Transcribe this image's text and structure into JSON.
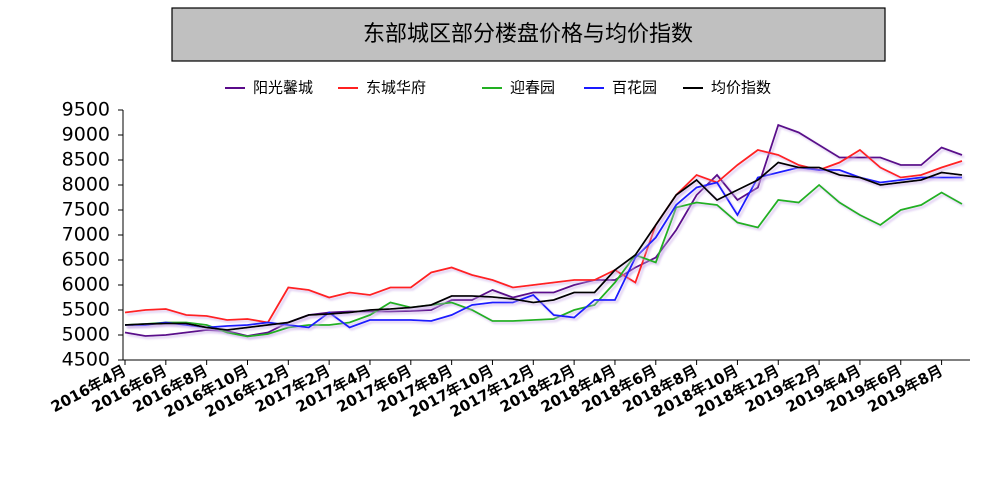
{
  "chart_data": {
    "type": "line",
    "title": "东部城区部分楼盘价格与均价指数",
    "categories": [
      "2016年4月",
      null,
      "2016年6月",
      null,
      "2016年8月",
      null,
      "2016年10月",
      null,
      "2016年12月",
      null,
      "2017年2月",
      null,
      "2017年4月",
      null,
      "2017年6月",
      null,
      "2017年8月",
      null,
      "2017年10月",
      null,
      "2017年12月",
      null,
      "2018年2月",
      null,
      "2018年4月",
      null,
      "2018年6月",
      null,
      "2018年8月",
      null,
      "2018年10月",
      null,
      "2018年12月",
      null,
      "2019年2月",
      null,
      "2019年4月",
      null,
      "2019年6月",
      null,
      "2019年8月",
      null
    ],
    "series": [
      {
        "name": "阳光馨城",
        "color": "#5a0a8a",
        "values": [
          5050,
          4980,
          5000,
          5050,
          5100,
          5080,
          4980,
          5050,
          5250,
          5400,
          5450,
          5470,
          5470,
          5470,
          5480,
          5500,
          5700,
          5700,
          5900,
          5750,
          5850,
          5850,
          6000,
          6100,
          6100,
          6350,
          6550,
          7100,
          7800,
          8200,
          7700,
          7950,
          9200,
          9050,
          8800,
          8550,
          8550,
          8550,
          8400,
          8400,
          8750,
          8600
        ]
      },
      {
        "name": "东城华府",
        "color": "#ff2020",
        "values": [
          5450,
          5500,
          5520,
          5400,
          5380,
          5300,
          5320,
          5250,
          5950,
          5900,
          5750,
          5850,
          5800,
          5950,
          5950,
          6250,
          6350,
          6200,
          6100,
          5950,
          6000,
          6050,
          6100,
          6100,
          6300,
          6050,
          7200,
          7800,
          8200,
          8050,
          8400,
          8700,
          8600,
          8400,
          8300,
          8450,
          8700,
          8350,
          8150,
          8200,
          8350,
          8480
        ]
      },
      {
        "name": "迎春园",
        "color": "#22b022",
        "values": [
          5200,
          5220,
          5250,
          5250,
          5200,
          5050,
          4970,
          5020,
          5150,
          5200,
          5200,
          5250,
          5400,
          5650,
          5550,
          5600,
          5650,
          5500,
          5280,
          5280,
          5300,
          5320,
          5500,
          5600,
          6050,
          6600,
          6450,
          7550,
          7650,
          7600,
          7250,
          7150,
          7700,
          7650,
          8000,
          7650,
          7400,
          7200,
          7500,
          7600,
          7850,
          7620
        ]
      },
      {
        "name": "百花园",
        "color": "#1a1aff",
        "values": [
          5200,
          5200,
          5250,
          5200,
          5150,
          5180,
          5200,
          5250,
          5200,
          5150,
          5450,
          5150,
          5300,
          5300,
          5300,
          5280,
          5400,
          5600,
          5650,
          5650,
          5800,
          5400,
          5350,
          5700,
          5700,
          6550,
          6950,
          7600,
          7950,
          8050,
          7400,
          8150,
          8250,
          8350,
          8300,
          8300,
          8150,
          8050,
          8100,
          8150,
          8150,
          8150
        ]
      },
      {
        "name": "均价指数",
        "color": "#000000",
        "values": [
          5200,
          5220,
          5230,
          5230,
          5150,
          5100,
          5150,
          5200,
          5250,
          5400,
          5420,
          5450,
          5500,
          5520,
          5550,
          5600,
          5780,
          5780,
          5760,
          5720,
          5650,
          5700,
          5850,
          5850,
          6300,
          6600,
          7200,
          7800,
          8100,
          7700,
          7900,
          8100,
          8450,
          8350,
          8350,
          8200,
          8150,
          8000,
          8050,
          8100,
          8250,
          8200
        ]
      }
    ],
    "ylim": [
      4500,
      9500
    ],
    "yticks": [
      4500,
      5000,
      5500,
      6000,
      6500,
      7000,
      7500,
      8000,
      8500,
      9000,
      9500
    ]
  }
}
